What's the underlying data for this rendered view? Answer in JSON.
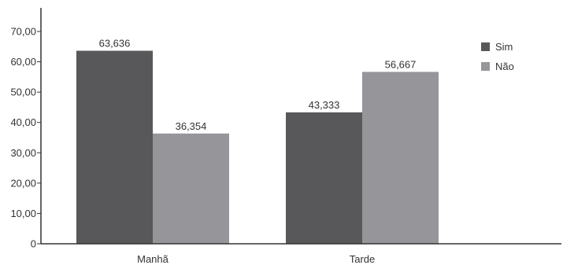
{
  "chart_data": {
    "type": "bar",
    "categories": [
      "Manhã",
      "Tarde"
    ],
    "series": [
      {
        "name": "Sim",
        "values": [
          63.636,
          43.333
        ],
        "labels": [
          "63,636",
          "43,333"
        ],
        "color": "#58585a"
      },
      {
        "name": "Não",
        "values": [
          36.354,
          56.667
        ],
        "labels": [
          "36,354",
          "56,667"
        ],
        "color": "#96969a"
      }
    ],
    "ylim": [
      0,
      70
    ],
    "y_ticks": [
      0,
      10,
      20,
      30,
      40,
      50,
      60,
      70
    ],
    "y_tick_labels": [
      "0",
      "10,00",
      "20,00",
      "30,00",
      "40,00",
      "50,00",
      "60,00",
      "70,00"
    ],
    "legend_position": "top-right",
    "grid": false,
    "title": "",
    "xlabel": "",
    "ylabel": ""
  }
}
